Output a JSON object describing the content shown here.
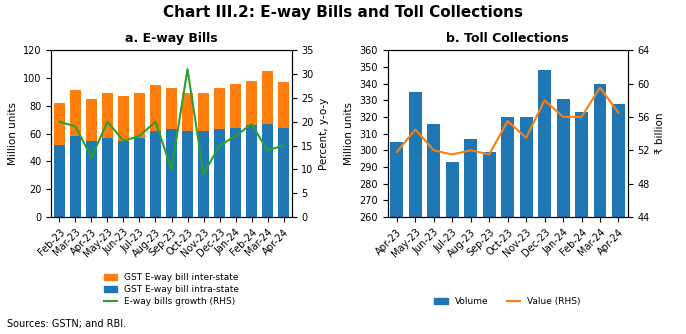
{
  "title": "Chart III.2: E-way Bills and Toll Collections",
  "annotations": [
    "Sources: GSTN; and RBI."
  ],
  "chart_data": [
    {
      "type": "bar",
      "title": "a. E-way Bills",
      "stacked": true,
      "legend": "lower center",
      "categories": [
        "Feb-23",
        "Mar-23",
        "Apr-23",
        "May-23",
        "Jun-23",
        "Jul-23",
        "Aug-23",
        "Sep-23",
        "Oct-23",
        "Nov-23",
        "Dec-23",
        "Jan-24",
        "Feb-24",
        "Mar-24",
        "Apr-24"
      ],
      "series": [
        {
          "name": "GST E-way bill intra-state",
          "values": [
            52,
            58,
            55,
            57,
            55,
            57,
            62,
            63,
            62,
            62,
            63,
            64,
            66,
            67,
            64
          ]
        },
        {
          "name": "GST E-way bill inter-state",
          "values": [
            30,
            33,
            30,
            32,
            32,
            32,
            33,
            30,
            27,
            27,
            30,
            32,
            32,
            38,
            33
          ]
        },
        {
          "name": "E-way bills growth (RHS)",
          "type": "line",
          "axis": "y2",
          "values": [
            20,
            19,
            12.5,
            20,
            16,
            17,
            20,
            10,
            31,
            9,
            15,
            17,
            19.5,
            14,
            15
          ]
        }
      ],
      "ylabel": "Million units",
      "y2label": "Percent, y-o-y",
      "ylim": [
        0,
        120
      ],
      "yticks": [
        0,
        20,
        40,
        60,
        80,
        100,
        120
      ],
      "y2lim": [
        0,
        35
      ],
      "y2ticks": [
        0,
        5,
        10,
        15,
        20,
        25,
        30,
        35
      ]
    },
    {
      "type": "bar",
      "title": "b. Toll Collections",
      "legend": "lower center",
      "categories": [
        "Apr-23",
        "May-23",
        "Jun-23",
        "Jul-23",
        "Aug-23",
        "Sep-23",
        "Oct-23",
        "Nov-23",
        "Dec-23",
        "Jan-24",
        "Feb-24",
        "Mar-24",
        "Apr-24"
      ],
      "series": [
        {
          "name": "Volume",
          "values": [
            305,
            335,
            316,
            293,
            307,
            299,
            320,
            320,
            348,
            331,
            323,
            340,
            328
          ]
        },
        {
          "name": "Value (RHS)",
          "type": "line",
          "axis": "y2",
          "values": [
            51.8,
            54.5,
            52.0,
            51.5,
            52.0,
            51.5,
            55.5,
            53.5,
            58.0,
            56.0,
            56.0,
            59.5,
            56.5
          ]
        }
      ],
      "ylabel": "Million units",
      "y2label": "₹ billion",
      "ylim": [
        260,
        360
      ],
      "yticks": [
        260,
        270,
        280,
        290,
        300,
        310,
        320,
        330,
        340,
        350,
        360
      ],
      "y2lim": [
        44,
        64
      ],
      "y2ticks": [
        44,
        48,
        52,
        56,
        60,
        64
      ]
    }
  ]
}
